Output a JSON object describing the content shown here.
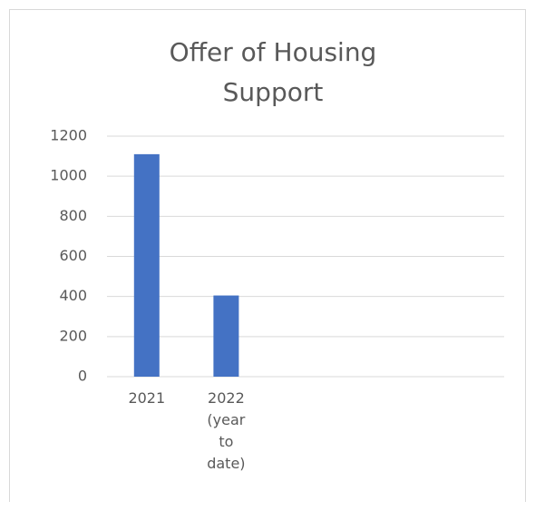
{
  "chart_data": {
    "type": "bar",
    "title": "Offer of Housing Support",
    "categories": [
      "2021",
      "2022 (year to date)",
      null,
      null,
      null
    ],
    "values": [
      1110,
      405,
      null,
      null,
      null
    ],
    "color": "#4472c4",
    "ylim": [
      0,
      1200
    ],
    "yticks": [
      0,
      200,
      400,
      600,
      800,
      1000,
      1200
    ],
    "grid": true
  }
}
